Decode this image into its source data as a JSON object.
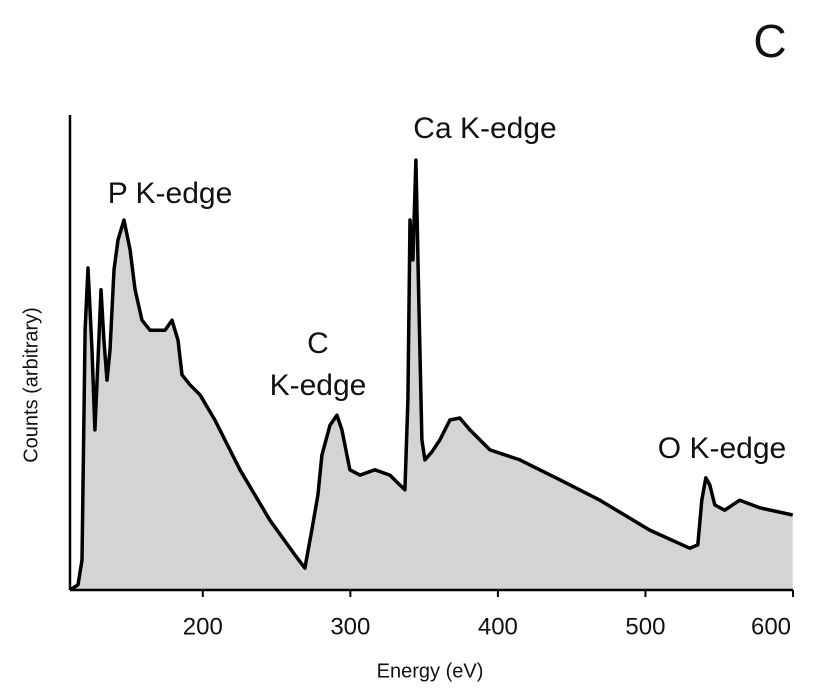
{
  "chart_data": {
    "type": "area",
    "title": "C",
    "x_label": "Energy (eV)",
    "y_label": "Counts (arbitrary)",
    "x": [
      110,
      115.4,
      118.1,
      120.2,
      122.2,
      124.9,
      126.9,
      129,
      131,
      133,
      135.1,
      137.1,
      139.8,
      142.5,
      146.6,
      150.7,
      154.1,
      158.8,
      164.2,
      174.4,
      179.1,
      183.2,
      185.9,
      191.3,
      198.1,
      208.2,
      225.2,
      245.5,
      262.4,
      269.2,
      273.9,
      278,
      280.7,
      286.2,
      290.9,
      294.3,
      299.7,
      306.5,
      316.6,
      326.8,
      333.6,
      337,
      339,
      340.4,
      342.4,
      344.4,
      346.4,
      348.5,
      350.5,
      355.3,
      360.7,
      367.5,
      374.2,
      381,
      394.6,
      414.9,
      442,
      469.1,
      502.9,
      530,
      535.5,
      538.2,
      540.9,
      543.6,
      547,
      553.7,
      563.9,
      577.5,
      599.8
    ],
    "series": [
      {
        "color": "#000000",
        "fill": "#d4d4d4",
        "values": [
          0,
          1.1,
          6.3,
          54.7,
          67.8,
          50.5,
          33.7,
          48.4,
          63.2,
          52.6,
          44.2,
          50.5,
          67.4,
          73.7,
          77.9,
          71.6,
          63.2,
          56.8,
          54.7,
          54.7,
          56.8,
          52.6,
          45.3,
          43.2,
          41.1,
          35.8,
          25.3,
          14.7,
          7.4,
          4.6,
          12.6,
          20,
          28.4,
          34.7,
          36.8,
          33.7,
          25.3,
          24.2,
          25.3,
          24.2,
          22.1,
          21.1,
          40,
          77.9,
          69.5,
          90.5,
          61.1,
          31.6,
          27.4,
          29.1,
          31.6,
          35.8,
          36.2,
          33.7,
          29.5,
          27.4,
          23.2,
          18.9,
          12.6,
          8.8,
          9.5,
          18.9,
          23.6,
          22.1,
          17.9,
          16.8,
          18.9,
          17.3,
          15.8
        ]
      }
    ],
    "xlim": [
      110,
      600
    ],
    "xticks": [
      200,
      300,
      400,
      500,
      600
    ],
    "ylim": [
      0,
      100
    ],
    "annotations": [
      {
        "text": "P K-edge"
      },
      {
        "lines": [
          "C",
          "K-edge"
        ]
      },
      {
        "text": "Ca K-edge"
      },
      {
        "text": "O K-edge"
      }
    ]
  }
}
